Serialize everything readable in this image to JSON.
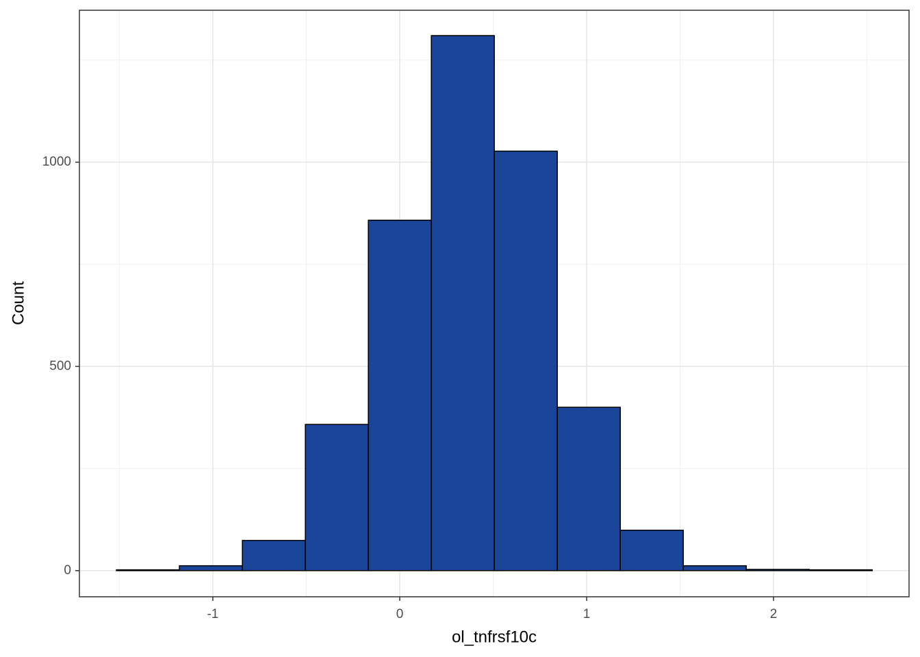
{
  "chart_data": {
    "type": "histogram",
    "x_label": "ol_tnfrsf10c",
    "y_label": "Count",
    "bins": [
      -1.516,
      -1.179,
      -0.842,
      -0.505,
      -0.168,
      0.169,
      0.506,
      0.843,
      1.18,
      1.517,
      1.854,
      2.191,
      2.528
    ],
    "values": [
      2,
      12,
      74,
      358,
      858,
      1310,
      1027,
      400,
      99,
      12,
      3,
      2
    ],
    "color": "#1a4599",
    "edge_color": "#000000",
    "xlim": [
      -1.714,
      2.725
    ],
    "ylim": [
      -64,
      1372
    ],
    "xticks": [
      -1,
      0,
      1,
      2
    ],
    "yticks": [
      0,
      500,
      1000
    ],
    "x_minor_ticks": [
      -1.5,
      -0.5,
      0.5,
      1.5,
      2.5
    ],
    "y_minor_ticks": [
      250,
      750,
      1250
    ],
    "grid": true
  }
}
